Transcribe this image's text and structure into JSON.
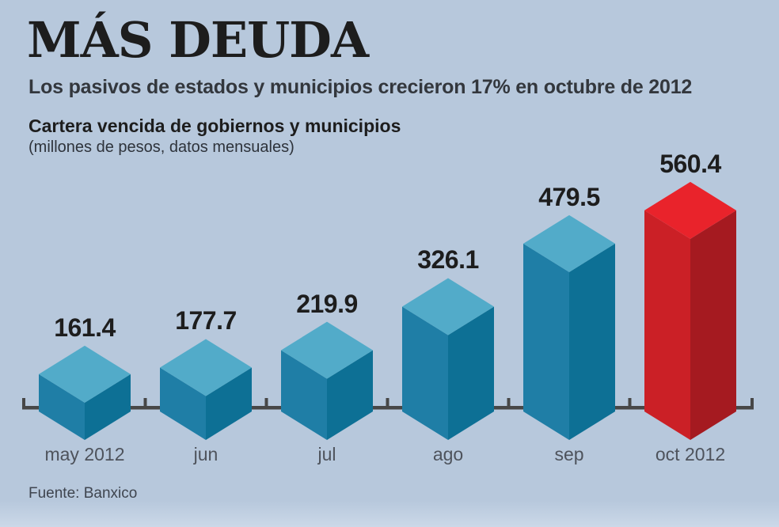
{
  "page": {
    "title": "MÁS DEUDA",
    "subtitle": "Los pasivos de estados y municipios crecieron 17% en octubre de 2012",
    "chart_heading": "Cartera vencida de gobiernos y municipios",
    "chart_subheading": "(millones de pesos, datos mensuales)",
    "source": "Fuente: Banxico"
  },
  "colors": {
    "background": "#b7c8dc",
    "axis": "#474747",
    "value_label": "#1d1d1d",
    "month_label": "#4e535c",
    "bar_normal": {
      "top": "#52abc9",
      "left": "#1f7ea6",
      "right": "#0d7095"
    },
    "bar_highlight": {
      "top": "#e9232b",
      "left": "#cb2026",
      "right": "#a51a20"
    }
  },
  "chart_data": {
    "type": "bar",
    "style": "3d-isometric-bars",
    "title": "Cartera vencida de gobiernos y municipios",
    "units": "millones de pesos, datos mensuales",
    "categories": [
      "may 2012",
      "jun",
      "jul",
      "ago",
      "sep",
      "oct 2012"
    ],
    "values": [
      161.4,
      177.7,
      219.9,
      326.1,
      479.5,
      560.4
    ],
    "value_labels": [
      "161.4",
      "177.7",
      "219.9",
      "326.1",
      "479.5",
      "560.4"
    ],
    "highlight_index": 5,
    "xlabel": "",
    "ylabel": "",
    "ylim": [
      0,
      600
    ],
    "gridlines": false,
    "legend": "none",
    "annotation": "Los pasivos de estados y municipios crecieron 17% en octubre de 2012",
    "source": "Fuente: Banxico"
  }
}
